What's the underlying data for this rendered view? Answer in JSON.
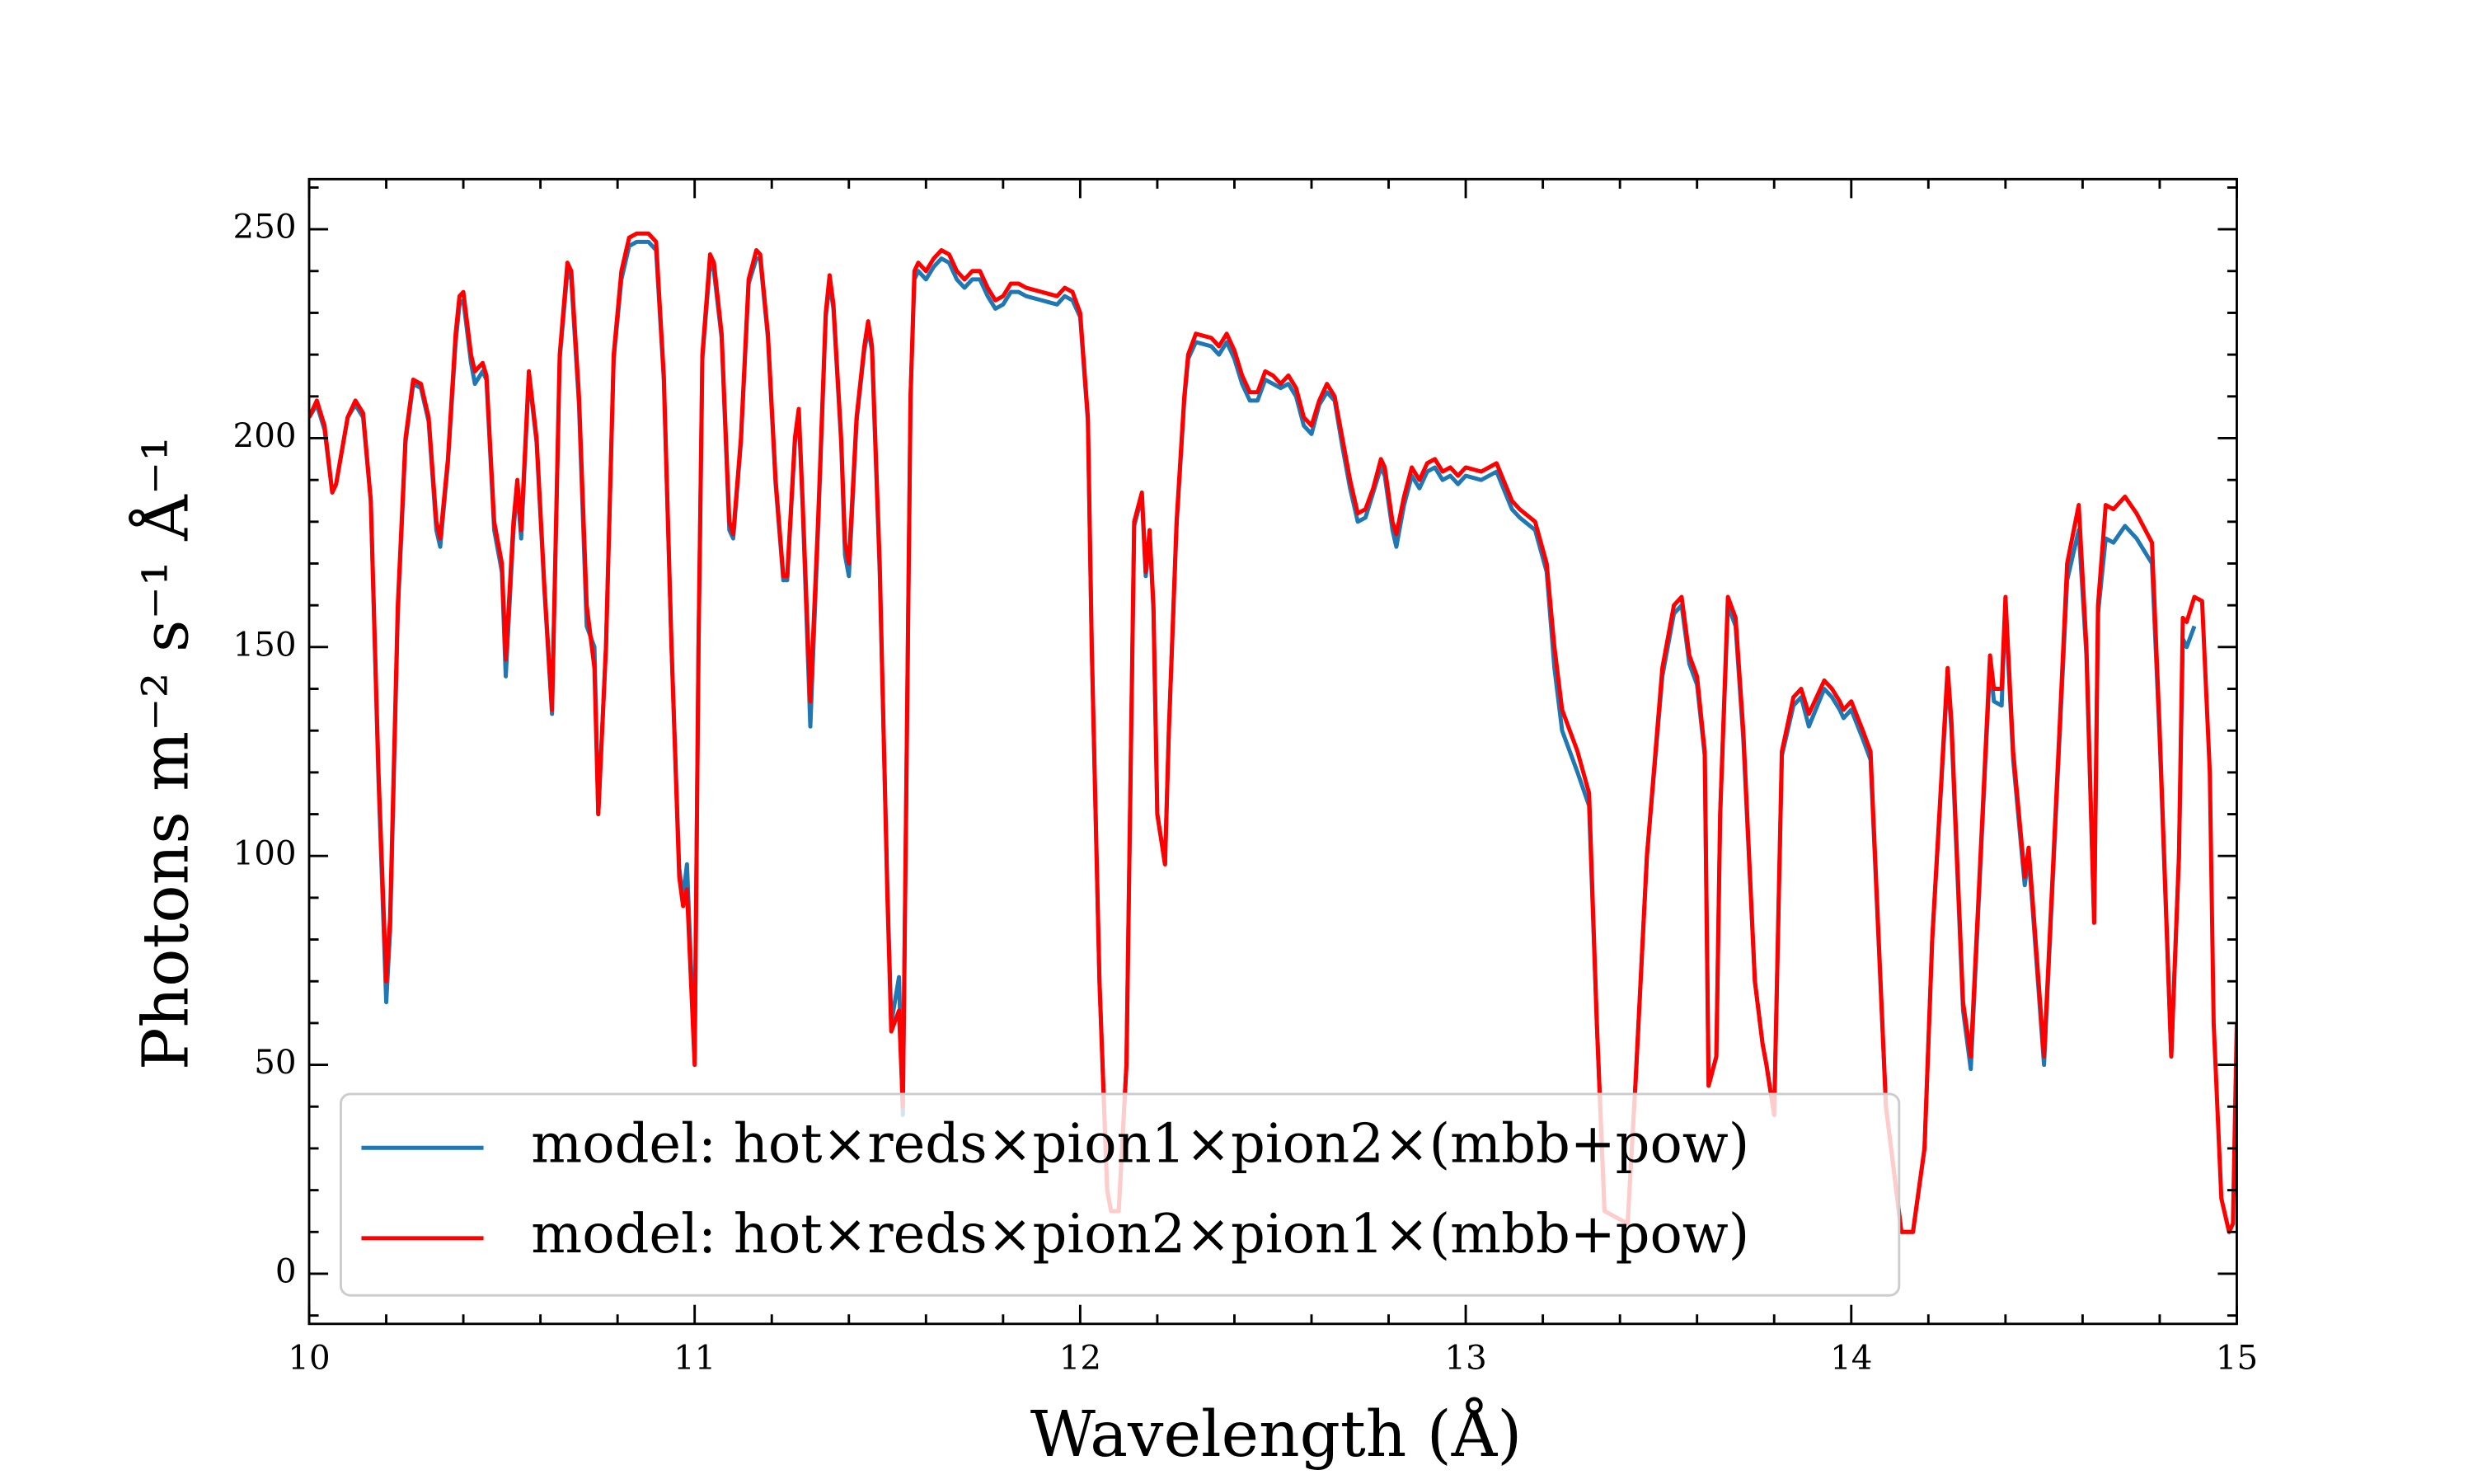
{
  "chart_data": {
    "type": "line",
    "xlabel": "Wavelength (Å)",
    "ylabel": "Photons m⁻² s⁻¹ Å⁻¹",
    "xlim": [
      10,
      15
    ],
    "ylim": [
      -12,
      262
    ],
    "xticks": [
      10,
      11,
      12,
      13,
      14,
      15
    ],
    "yticks": [
      0,
      50,
      100,
      150,
      200,
      250
    ],
    "xminorticks": [
      10.2,
      10.4,
      10.6,
      10.8,
      11.2,
      11.4,
      11.6,
      11.8,
      12.2,
      12.4,
      12.6,
      12.8,
      13.2,
      13.4,
      13.6,
      13.8,
      14.2,
      14.4,
      14.6,
      14.8
    ],
    "yminorticks": [
      -10,
      10,
      20,
      30,
      40,
      60,
      70,
      80,
      90,
      110,
      120,
      130,
      140,
      160,
      170,
      180,
      190,
      210,
      220,
      230,
      240,
      260
    ],
    "legend": "lower left",
    "x": [
      10.0,
      10.02,
      10.04,
      10.06,
      10.07,
      10.1,
      10.12,
      10.14,
      10.16,
      10.18,
      10.2,
      10.21,
      10.23,
      10.25,
      10.27,
      10.29,
      10.31,
      10.33,
      10.34,
      10.36,
      10.38,
      10.39,
      10.4,
      10.42,
      10.43,
      10.45,
      10.46,
      10.48,
      10.5,
      10.51,
      10.53,
      10.54,
      10.55,
      10.57,
      10.59,
      10.61,
      10.63,
      10.65,
      10.67,
      10.68,
      10.7,
      10.72,
      10.74,
      10.75,
      10.77,
      10.79,
      10.81,
      10.83,
      10.85,
      10.88,
      10.9,
      10.92,
      10.94,
      10.96,
      10.97,
      10.98,
      11.0,
      11.01,
      11.02,
      11.04,
      11.05,
      11.07,
      11.09,
      11.1,
      11.12,
      11.14,
      11.16,
      11.17,
      11.19,
      11.21,
      11.23,
      11.24,
      11.26,
      11.27,
      11.28,
      11.3,
      11.32,
      11.34,
      11.35,
      11.36,
      11.38,
      11.39,
      11.4,
      11.42,
      11.44,
      11.45,
      11.46,
      11.48,
      11.5,
      11.51,
      11.53,
      11.54,
      11.56,
      11.57,
      11.58,
      11.6,
      11.62,
      11.64,
      11.66,
      11.68,
      11.7,
      11.72,
      11.74,
      11.76,
      11.78,
      11.8,
      11.82,
      11.84,
      11.86,
      11.9,
      11.94,
      11.96,
      11.98,
      12.0,
      12.02,
      12.03,
      12.05,
      12.07,
      12.08,
      12.1,
      12.12,
      12.14,
      12.16,
      12.17,
      12.18,
      12.19,
      12.2,
      12.22,
      12.23,
      12.25,
      12.27,
      12.28,
      12.3,
      12.34,
      12.36,
      12.38,
      12.4,
      12.42,
      12.44,
      12.46,
      12.48,
      12.5,
      12.52,
      12.54,
      12.56,
      12.58,
      12.6,
      12.62,
      12.64,
      12.66,
      12.68,
      12.7,
      12.72,
      12.74,
      12.76,
      12.78,
      12.79,
      12.81,
      12.82,
      12.84,
      12.86,
      12.88,
      12.9,
      12.92,
      12.94,
      12.96,
      12.98,
      13.0,
      13.04,
      13.08,
      13.12,
      13.14,
      13.18,
      13.21,
      13.23,
      13.25,
      13.29,
      13.32,
      13.34,
      13.36,
      13.42,
      13.44,
      13.47,
      13.51,
      13.54,
      13.56,
      13.58,
      13.6,
      13.62,
      13.63,
      13.65,
      13.66,
      13.68,
      13.7,
      13.72,
      13.75,
      13.77,
      13.78,
      13.8,
      13.82,
      13.85,
      13.87,
      13.89,
      13.93,
      13.95,
      13.97,
      13.98,
      14.0,
      14.03,
      14.05,
      14.09,
      14.13,
      14.16,
      14.19,
      14.21,
      14.25,
      14.26,
      14.29,
      14.31,
      14.33,
      14.36,
      14.37,
      14.39,
      14.4,
      14.42,
      14.45,
      14.46,
      14.47,
      14.5,
      14.54,
      14.56,
      14.59,
      14.61,
      14.63,
      14.64,
      14.66,
      14.68,
      14.71,
      14.74,
      14.78,
      14.8,
      14.83,
      14.85,
      14.86,
      14.87,
      14.89,
      14.91,
      14.93,
      14.94,
      14.96,
      14.98,
      14.99,
      15.0
    ],
    "series": [
      {
        "name": "model: hot×reds×pion1×pion2×(mbb+pow)",
        "color": "#1f77b4",
        "values": [
          205,
          208,
          202,
          187,
          189,
          205,
          208,
          205,
          185,
          118,
          65,
          82,
          158,
          199,
          213,
          212,
          204,
          178,
          174,
          194,
          223,
          232,
          233,
          218,
          213,
          216,
          214,
          178,
          168,
          143,
          178,
          188,
          176,
          215,
          199,
          164,
          134,
          219,
          240,
          238,
          208,
          155,
          150,
          110,
          150,
          219,
          238,
          246,
          247,
          247,
          245,
          214,
          150,
          97,
          90,
          98,
          52,
          150,
          219,
          242,
          240,
          224,
          178,
          176,
          199,
          237,
          243,
          243,
          224,
          189,
          166,
          166,
          199,
          206,
          184,
          131,
          178,
          229,
          237,
          231,
          199,
          172,
          167,
          204,
          221,
          226,
          221,
          168,
          92,
          60,
          71,
          38,
          210,
          238,
          240,
          238,
          241,
          243,
          242,
          238,
          236,
          238,
          238,
          234,
          231,
          232,
          235,
          235,
          234,
          233,
          232,
          234,
          233,
          229,
          204,
          150,
          70,
          20,
          15,
          15,
          50,
          179,
          186,
          167,
          177,
          159,
          110,
          98,
          130,
          179,
          209,
          219,
          223,
          222,
          220,
          223,
          219,
          213,
          209,
          209,
          214,
          213,
          212,
          213,
          210,
          203,
          201,
          208,
          211,
          209,
          198,
          188,
          180,
          181,
          187,
          193,
          191,
          178,
          174,
          184,
          191,
          188,
          192,
          193,
          190,
          191,
          189,
          191,
          190,
          192,
          183,
          181,
          178,
          168,
          145,
          130,
          120,
          112,
          60,
          15,
          12,
          45,
          100,
          143,
          158,
          160,
          146,
          141,
          124,
          45,
          52,
          110,
          160,
          155,
          128,
          70,
          55,
          50,
          38,
          124,
          136,
          138,
          131,
          140,
          138,
          135,
          133,
          135,
          128,
          123,
          40,
          10,
          10,
          30,
          80,
          143,
          130,
          63,
          49,
          88,
          146,
          137,
          136,
          160,
          123,
          93,
          100,
          88,
          50,
          128,
          166,
          178,
          148,
          84,
          158,
          176,
          175,
          179,
          176,
          170,
          128,
          52,
          100,
          152,
          150,
          155,
          null,
          null,
          null,
          null,
          null,
          null,
          null
        ]
      },
      {
        "name": "model: hot×reds×pion2×pion1×(mbb+pow)",
        "color": "#ff0000",
        "values": [
          205,
          209,
          203,
          187,
          189,
          205,
          209,
          206,
          185,
          120,
          70,
          85,
          160,
          200,
          214,
          213,
          205,
          180,
          176,
          195,
          225,
          234,
          235,
          220,
          216,
          218,
          215,
          180,
          170,
          147,
          180,
          190,
          178,
          216,
          200,
          165,
          135,
          220,
          242,
          240,
          210,
          160,
          145,
          110,
          150,
          220,
          240,
          248,
          249,
          249,
          247,
          215,
          150,
          95,
          88,
          92,
          50,
          150,
          220,
          244,
          242,
          225,
          180,
          177,
          200,
          238,
          245,
          244,
          225,
          190,
          167,
          167,
          200,
          207,
          185,
          137,
          180,
          230,
          239,
          232,
          200,
          175,
          170,
          205,
          222,
          228,
          222,
          170,
          90,
          58,
          63,
          40,
          210,
          240,
          242,
          240,
          243,
          245,
          244,
          240,
          238,
          240,
          240,
          236,
          233,
          234,
          237,
          237,
          236,
          235,
          234,
          236,
          235,
          230,
          205,
          150,
          70,
          20,
          15,
          15,
          50,
          180,
          187,
          168,
          178,
          160,
          110,
          98,
          130,
          180,
          210,
          220,
          225,
          224,
          222,
          225,
          221,
          215,
          211,
          211,
          216,
          215,
          213,
          215,
          212,
          205,
          203,
          209,
          213,
          210,
          200,
          190,
          182,
          183,
          188,
          195,
          193,
          180,
          177,
          186,
          193,
          190,
          194,
          195,
          192,
          193,
          191,
          193,
          192,
          194,
          185,
          183,
          180,
          170,
          150,
          135,
          125,
          115,
          60,
          15,
          12,
          45,
          100,
          145,
          160,
          162,
          148,
          143,
          125,
          45,
          52,
          110,
          162,
          157,
          130,
          70,
          55,
          50,
          38,
          125,
          138,
          140,
          134,
          142,
          140,
          137,
          135,
          137,
          130,
          125,
          40,
          10,
          10,
          30,
          80,
          145,
          132,
          65,
          52,
          90,
          148,
          140,
          140,
          162,
          125,
          95,
          102,
          90,
          52,
          130,
          170,
          184,
          150,
          84,
          160,
          184,
          183,
          186,
          182,
          175,
          130,
          52,
          100,
          157,
          156,
          162,
          161,
          120,
          60,
          18,
          10,
          12,
          60
        ]
      }
    ]
  }
}
